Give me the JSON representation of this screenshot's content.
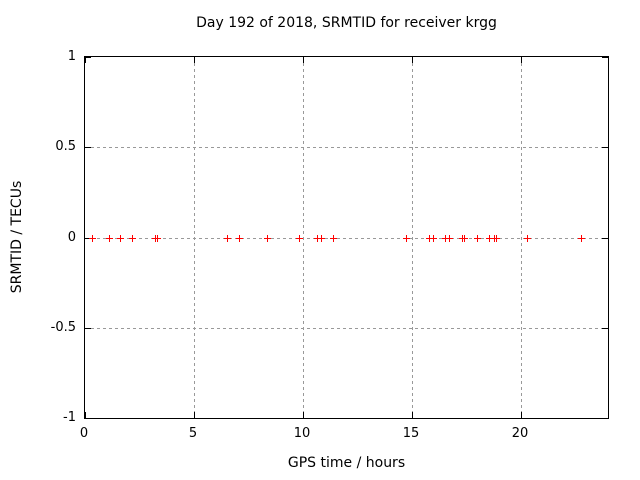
{
  "window": {
    "background": "#ffffff"
  },
  "chart_data": {
    "type": "scatter",
    "title": "Day 192 of 2018, SRMTID for receiver krgg",
    "xlabel": "GPS time / hours",
    "ylabel": "SRMTID / TECUs",
    "xlim": [
      0,
      24
    ],
    "ylim": [
      -1,
      1
    ],
    "xticks": [
      0,
      5,
      10,
      15,
      20
    ],
    "xtick_labels": [
      "0",
      "5",
      "10",
      "15",
      "20"
    ],
    "yticks": [
      1,
      0.5,
      0,
      -0.5,
      -1
    ],
    "ytick_labels": [
      "1",
      "0.5",
      "0",
      "-0.5",
      "-1"
    ],
    "grid": "dashed, at major ticks, mirrored inward tick marks on all four borders",
    "legend": "none",
    "marker": {
      "shape": "plus",
      "size": 7
    },
    "colors": {
      "marker": "#ff0000",
      "grid": "#999999",
      "axis": "#000000",
      "text": "#000000",
      "background": "#ffffff"
    },
    "series": [
      {
        "name": "SRMTID",
        "x": [
          0.3,
          1.1,
          1.6,
          2.15,
          3.2,
          3.3,
          6.5,
          7.05,
          8.35,
          9.8,
          10.65,
          10.85,
          11.4,
          14.75,
          15.8,
          15.95,
          16.5,
          16.7,
          17.3,
          17.4,
          18.0,
          18.55,
          18.75,
          18.85,
          20.3,
          22.75
        ],
        "y": [
          0,
          0,
          0,
          0,
          0,
          0,
          0,
          0,
          0,
          0,
          0,
          0,
          0,
          0,
          0,
          0,
          0,
          0,
          0,
          0,
          0,
          0,
          0,
          0,
          0,
          0
        ]
      }
    ]
  }
}
